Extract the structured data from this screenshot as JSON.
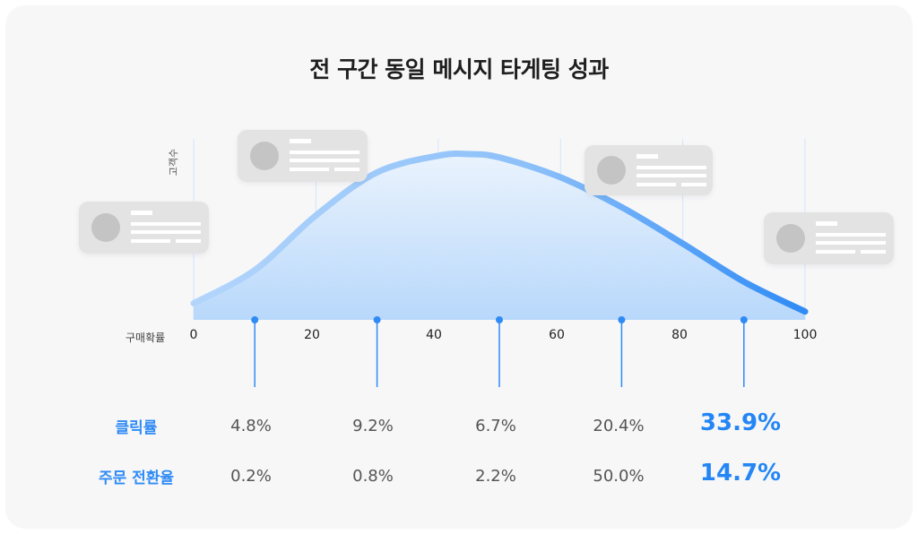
{
  "title": "전 구간 동일 메시지 타게팅 성과",
  "chart_data": {
    "type": "area",
    "title": "전 구간 동일 메시지 타게팅 성과",
    "xlabel": "구매확률",
    "ylabel": "고객수",
    "xlim": [
      0,
      100
    ],
    "x_ticks": [
      "0",
      "20",
      "40",
      "60",
      "80",
      "100"
    ],
    "grid": true,
    "curve": {
      "x": [
        0,
        10,
        20,
        30,
        40,
        45,
        50,
        60,
        70,
        80,
        90,
        100
      ],
      "y": [
        10,
        30,
        63,
        89,
        99,
        100,
        98,
        86,
        68,
        46,
        23,
        5
      ]
    },
    "segment_markers": [
      10,
      30,
      50,
      70,
      90
    ],
    "metrics": [
      {
        "label": "클릭률",
        "values": [
          "4.8%",
          "9.2%",
          "6.7%",
          "20.4%",
          "33.9%"
        ]
      },
      {
        "label": "주문 전환율",
        "values": [
          "0.2%",
          "0.8%",
          "2.2%",
          "50.0%",
          "14.7%"
        ]
      }
    ],
    "highlight_index": 4
  },
  "colors": {
    "accent": "#2f8bf5",
    "curve_start": "#aed2fb",
    "curve_end": "#2f8bf5",
    "card": "#e3e3e3",
    "avatar": "#c4c4c4"
  }
}
